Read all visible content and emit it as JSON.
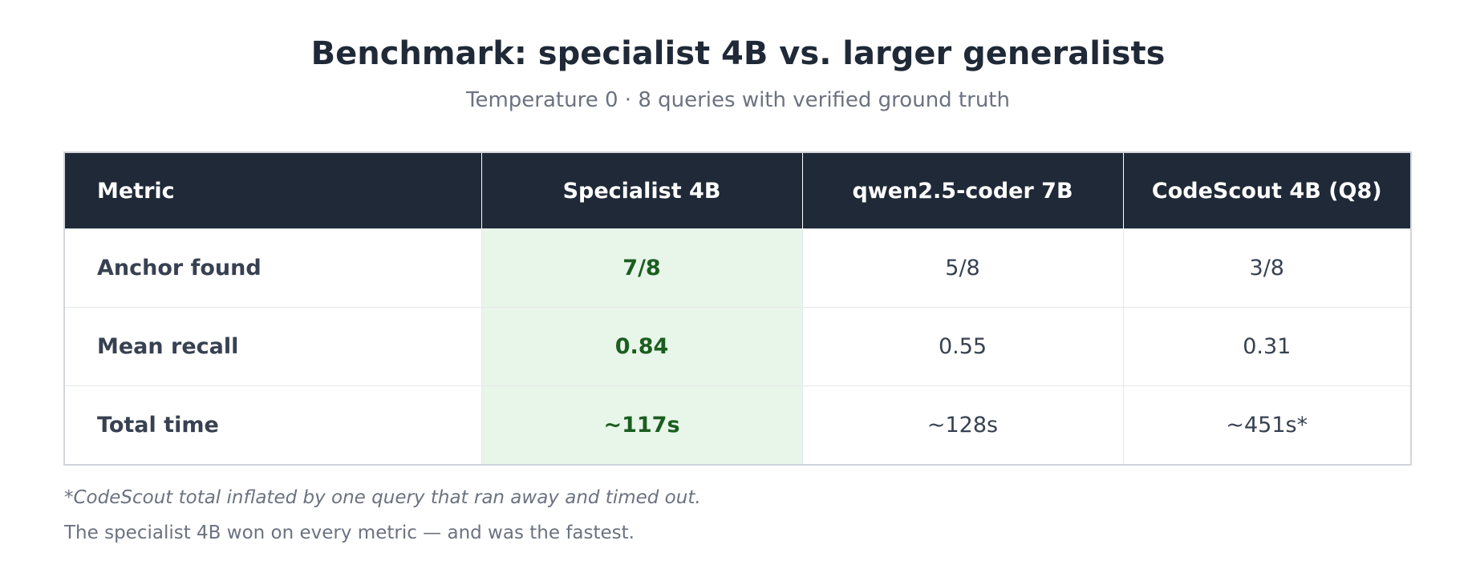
{
  "header": {
    "title": "Benchmark: specialist 4B vs. larger generalists",
    "subtitle": "Temperature 0 · 8 queries with verified ground truth"
  },
  "table": {
    "columns": [
      "Metric",
      "Specialist 4B",
      "qwen2.5-coder 7B",
      "CodeScout 4B (Q8)"
    ],
    "rows": [
      [
        "Anchor found",
        "7/8",
        "5/8",
        "3/8"
      ],
      [
        "Mean recall",
        "0.84",
        "0.55",
        "0.31"
      ],
      [
        "Total time",
        "~117s",
        "~128s",
        "~451s*"
      ]
    ]
  },
  "footnote": "*CodeScout total inflated by one query that ran away and timed out.",
  "summary": "The specialist 4B won on every metric — and was the fastest."
}
